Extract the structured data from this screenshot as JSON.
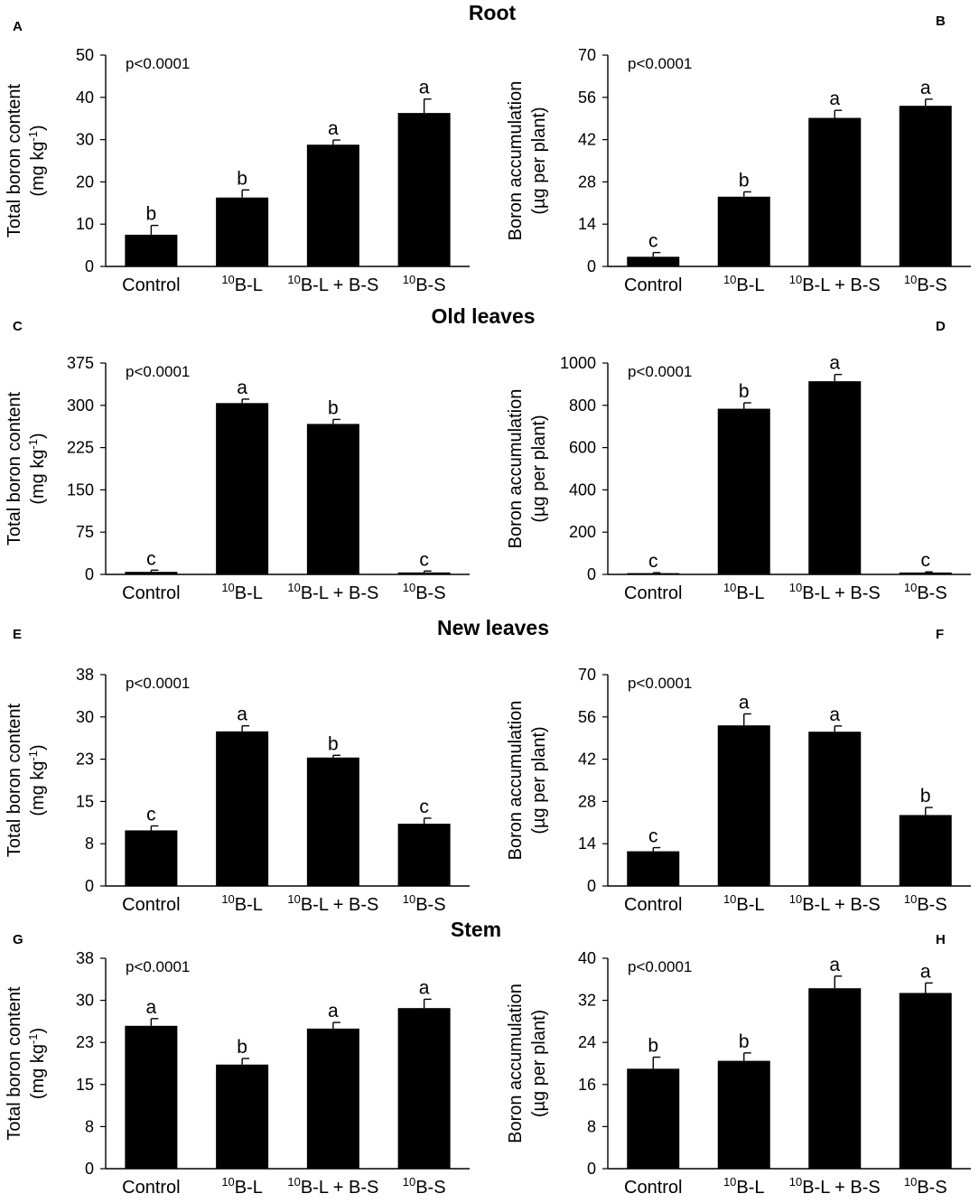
{
  "chart_data": [
    {
      "id": "A",
      "type": "bar",
      "group_title": "Root",
      "ylabel_line1": "Total boron content",
      "ylabel_line2": "(mg kg",
      "ylabel_sup": "-1",
      "ylabel_end": ")",
      "p_value": "p<0.0001",
      "categories": [
        {
          "sup": "",
          "text": "Control"
        },
        {
          "sup": "10",
          "text": "B-L"
        },
        {
          "sup": "10",
          "text": "B-L + B-S"
        },
        {
          "sup": "10",
          "text": "B-S"
        }
      ],
      "values": [
        7.5,
        16.3,
        28.8,
        36.3
      ],
      "errors": [
        2.2,
        1.8,
        1.1,
        3.3
      ],
      "letters": [
        "b",
        "b",
        "a",
        "a"
      ],
      "ylim": [
        0,
        50
      ],
      "yticks": [
        "0",
        "10",
        "20",
        "30",
        "40",
        "50"
      ]
    },
    {
      "id": "B",
      "type": "bar",
      "ylabel_line1": "Boron accumulation",
      "ylabel_line2": "(µg per plant)",
      "ylabel_sup": "",
      "ylabel_end": "",
      "p_value": "p<0.0001",
      "categories": [
        {
          "sup": "",
          "text": "Control"
        },
        {
          "sup": "10",
          "text": "B-L"
        },
        {
          "sup": "10",
          "text": "B-L + B-S"
        },
        {
          "sup": "10",
          "text": "B-S"
        }
      ],
      "values": [
        3.2,
        23.1,
        49.2,
        53.2
      ],
      "errors": [
        1.4,
        1.6,
        2.5,
        2.2
      ],
      "letters": [
        "c",
        "b",
        "a",
        "a"
      ],
      "ylim": [
        0,
        70
      ],
      "yticks": [
        "0",
        "14",
        "28",
        "42",
        "56",
        "70"
      ]
    },
    {
      "id": "C",
      "type": "bar",
      "group_title": "Old leaves",
      "ylabel_line1": "Total boron content",
      "ylabel_line2": "(mg kg",
      "ylabel_sup": "-1",
      "ylabel_end": ")",
      "p_value": "p<0.0001",
      "categories": [
        {
          "sup": "",
          "text": "Control"
        },
        {
          "sup": "10",
          "text": "B-L"
        },
        {
          "sup": "10",
          "text": "B-L + B-S"
        },
        {
          "sup": "10",
          "text": "B-S"
        }
      ],
      "values": [
        4.5,
        304,
        267,
        3.5
      ],
      "errors": [
        3,
        7,
        8,
        2.5
      ],
      "letters": [
        "c",
        "a",
        "b",
        "c"
      ],
      "ylim": [
        0,
        375
      ],
      "yticks": [
        "0",
        "75",
        "150",
        "225",
        "300",
        "375"
      ]
    },
    {
      "id": "D",
      "type": "bar",
      "ylabel_line1": "Boron accumulation",
      "ylabel_line2": "(µg per plant)",
      "ylabel_sup": "",
      "ylabel_end": "",
      "p_value": "p<0.0001",
      "categories": [
        {
          "sup": "",
          "text": "Control"
        },
        {
          "sup": "10",
          "text": "B-L"
        },
        {
          "sup": "10",
          "text": "B-L + B-S"
        },
        {
          "sup": "10",
          "text": "B-S"
        }
      ],
      "values": [
        6,
        784,
        914,
        9
      ],
      "errors": [
        2,
        28,
        32,
        3
      ],
      "letters": [
        "c",
        "b",
        "a",
        "c"
      ],
      "ylim": [
        0,
        1000
      ],
      "yticks": [
        "0",
        "200",
        "400",
        "600",
        "800",
        "1000"
      ]
    },
    {
      "id": "E",
      "type": "bar",
      "group_title": "New leaves",
      "ylabel_line1": "Total boron content",
      "ylabel_line2": "(mg kg",
      "ylabel_sup": "-1",
      "ylabel_end": ")",
      "p_value": "p<0.0001",
      "categories": [
        {
          "sup": "",
          "text": "Control"
        },
        {
          "sup": "10",
          "text": "B-L"
        },
        {
          "sup": "10",
          "text": "B-L + B-S"
        },
        {
          "sup": "10",
          "text": "B-S"
        }
      ],
      "values": [
        10,
        27.8,
        23.1,
        11.2
      ],
      "errors": [
        0.8,
        1.0,
        0.4,
        1.0
      ],
      "letters": [
        "c",
        "a",
        "b",
        "c"
      ],
      "ylim": [
        0,
        38
      ],
      "yticks": [
        "0",
        "8",
        "15",
        "23",
        "30",
        "38"
      ]
    },
    {
      "id": "F",
      "type": "bar",
      "ylabel_line1": "Boron accumulation",
      "ylabel_line2": "(µg per plant)",
      "ylabel_sup": "",
      "ylabel_end": "",
      "p_value": "p<0.0001",
      "categories": [
        {
          "sup": "",
          "text": "Control"
        },
        {
          "sup": "10",
          "text": "B-L"
        },
        {
          "sup": "10",
          "text": "B-L + B-S"
        },
        {
          "sup": "10",
          "text": "B-S"
        }
      ],
      "values": [
        11.5,
        53.2,
        51.1,
        23.5
      ],
      "errors": [
        1.2,
        3.8,
        1.9,
        2.5
      ],
      "letters": [
        "c",
        "a",
        "a",
        "b"
      ],
      "ylim": [
        0,
        70
      ],
      "yticks": [
        "0",
        "14",
        "28",
        "42",
        "56",
        "70"
      ]
    },
    {
      "id": "G",
      "type": "bar",
      "group_title": "Stem",
      "ylabel_line1": "Total boron content",
      "ylabel_line2": "(mg kg",
      "ylabel_sup": "-1",
      "ylabel_end": ")",
      "p_value": "p<0.0001",
      "categories": [
        {
          "sup": "",
          "text": "Control"
        },
        {
          "sup": "10",
          "text": "B-L"
        },
        {
          "sup": "10",
          "text": "B-L + B-S"
        },
        {
          "sup": "10",
          "text": "B-S"
        }
      ],
      "values": [
        25.8,
        18.8,
        25.3,
        29.0
      ],
      "errors": [
        1.3,
        1.1,
        1.1,
        1.6
      ],
      "letters": [
        "a",
        "b",
        "a",
        "a"
      ],
      "ylim": [
        0,
        38
      ],
      "yticks": [
        "0",
        "8",
        "15",
        "23",
        "30",
        "38"
      ]
    },
    {
      "id": "H",
      "type": "bar",
      "ylabel_line1": "Boron accumulation",
      "ylabel_line2": "(µg per plant)",
      "ylabel_sup": "",
      "ylabel_end": "",
      "p_value": "p<0.0001",
      "categories": [
        {
          "sup": "",
          "text": "Control"
        },
        {
          "sup": "10",
          "text": "B-L"
        },
        {
          "sup": "10",
          "text": "B-L + B-S"
        },
        {
          "sup": "10",
          "text": "B-S"
        }
      ],
      "values": [
        19.0,
        20.5,
        34.3,
        33.4
      ],
      "errors": [
        2.2,
        1.5,
        2.3,
        1.9
      ],
      "letters": [
        "b",
        "b",
        "a",
        "a"
      ],
      "ylim": [
        0,
        40
      ],
      "yticks": [
        "0",
        "8",
        "16",
        "24",
        "32",
        "40"
      ]
    }
  ]
}
